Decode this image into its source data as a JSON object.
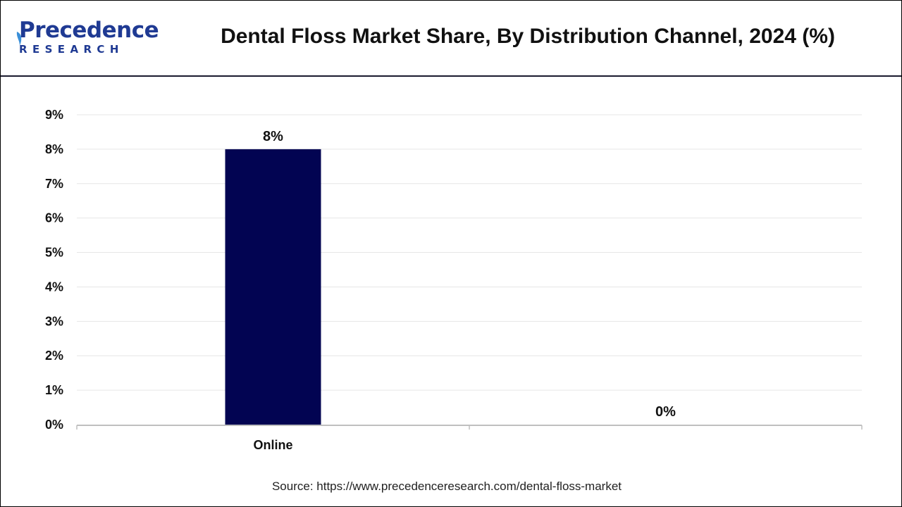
{
  "header": {
    "logo_main": "Precedence",
    "logo_sub": "RESEARCH",
    "title": "Dental Floss Market Share, By Distribution Channel, 2024 (%)"
  },
  "chart_data": {
    "type": "bar",
    "title": "Dental Floss Market Share, By Distribution Channel, 2024 (%)",
    "categories": [
      "Online",
      ""
    ],
    "values": [
      8,
      0
    ],
    "data_labels": [
      "8%",
      "0%"
    ],
    "y_ticks": [
      "0%",
      "1%",
      "2%",
      "3%",
      "4%",
      "5%",
      "6%",
      "7%",
      "8%",
      "9%"
    ],
    "ylim": [
      0,
      9
    ],
    "unit": "%",
    "grid": true,
    "legend": "none",
    "colors": {
      "bar": "#020452",
      "grid": "#e6e6e6",
      "axis": "#bfbfbf",
      "text": "#111111"
    }
  },
  "footer": {
    "source": "Source: https://www.precedenceresearch.com/dental-floss-market"
  }
}
